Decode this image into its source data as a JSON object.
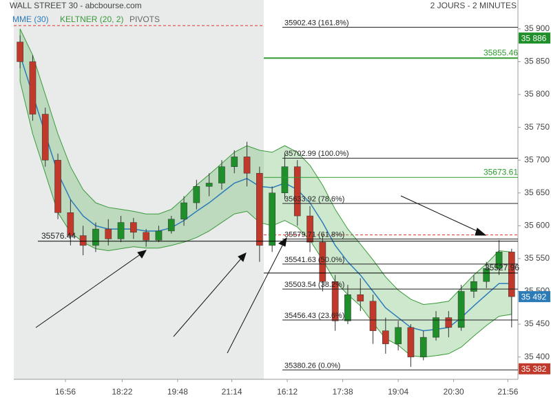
{
  "chart_data": {
    "type": "candlestick",
    "title": "WALL STREET 30 - abcbourse.com",
    "subtitle": "2 JOURS - 2 MINUTES",
    "xlim": [
      -0.5,
      39.5
    ],
    "xticks": [
      {
        "value": 3.6,
        "label": "16:56"
      },
      {
        "value": 8.1,
        "label": "18:22"
      },
      {
        "value": 12.5,
        "label": "19:48"
      },
      {
        "value": 16.8,
        "label": "21:14"
      },
      {
        "value": 21.2,
        "label": "16:12"
      },
      {
        "value": 25.6,
        "label": "17:38"
      },
      {
        "value": 30,
        "label": "19:04"
      },
      {
        "value": 34.4,
        "label": "20:30"
      },
      {
        "value": 38.7,
        "label": "21:56"
      }
    ],
    "ylim": [
      35366,
      35944
    ],
    "yticks": [
      {
        "value": 35400,
        "label": "35 400"
      },
      {
        "value": 35450,
        "label": "35 450"
      },
      {
        "value": 35500,
        "label": "35 500"
      },
      {
        "value": 35550,
        "label": "35 550"
      },
      {
        "value": 35600,
        "label": "35 600"
      },
      {
        "value": 35650,
        "label": "35 650"
      },
      {
        "value": 35700,
        "label": "35 700"
      },
      {
        "value": 35750,
        "label": "35 750"
      },
      {
        "value": 35800,
        "label": "35 800"
      },
      {
        "value": 35850,
        "label": "35 850"
      },
      {
        "value": 35900,
        "label": "35 900"
      }
    ],
    "up_color": "#1f8f2a",
    "down_color": "#c0392b",
    "candles": {
      "open": [
        35880,
        35850,
        35770,
        35700,
        35620,
        35585,
        35570,
        35595,
        35580,
        35605,
        35590,
        35578,
        35592,
        35610,
        35635,
        35660,
        35665,
        35690,
        35705,
        35680,
        35570,
        35650,
        35690,
        35615,
        35575,
        35515,
        35455,
        35495,
        35485,
        35440,
        35420,
        35445,
        35400,
        35430,
        35460,
        35445,
        35500,
        35515,
        35535,
        35560
      ],
      "high": [
        35890,
        35860,
        35780,
        35710,
        35640,
        35600,
        35605,
        35610,
        35615,
        35612,
        35595,
        35600,
        35615,
        35645,
        35670,
        35680,
        35700,
        35715,
        35728,
        35690,
        35660,
        35712,
        35700,
        35630,
        35585,
        35525,
        35510,
        35520,
        35495,
        35460,
        35455,
        35450,
        35440,
        35470,
        35470,
        35510,
        35525,
        35545,
        35578,
        35565
      ],
      "low": [
        35840,
        35760,
        35690,
        35610,
        35570,
        35555,
        35560,
        35570,
        35575,
        35580,
        35568,
        35575,
        35588,
        35600,
        35625,
        35645,
        35655,
        35680,
        35660,
        35545,
        35560,
        35640,
        35600,
        35560,
        35500,
        35440,
        35450,
        35470,
        35420,
        35405,
        35410,
        35385,
        35395,
        35425,
        35430,
        35440,
        35490,
        35505,
        35525,
        35445
      ],
      "close": [
        35850,
        35770,
        35700,
        35620,
        35585,
        35570,
        35595,
        35580,
        35605,
        35590,
        35578,
        35592,
        35610,
        35635,
        35660,
        35665,
        35690,
        35705,
        35680,
        35570,
        35650,
        35690,
        35615,
        35575,
        35515,
        35455,
        35495,
        35485,
        35440,
        35420,
        35445,
        35400,
        35430,
        35460,
        35445,
        35500,
        35515,
        35535,
        35560,
        35492
      ]
    },
    "mme": {
      "name": "MME (30)",
      "color": "#2b7bb9",
      "values": [
        35860,
        35800,
        35740,
        35680,
        35640,
        35615,
        35600,
        35595,
        35595,
        35595,
        35592,
        35592,
        35597,
        35608,
        35622,
        35635,
        35650,
        35665,
        35672,
        35660,
        35658,
        35665,
        35655,
        35635,
        35605,
        35570,
        35545,
        35525,
        35500,
        35475,
        35460,
        35445,
        35440,
        35442,
        35445,
        35460,
        35478,
        35495,
        35512,
        35512
      ]
    },
    "keltner": {
      "name": "KELTNER (20, 2)",
      "color": "#3a9a3a",
      "upper": [
        35900,
        35860,
        35800,
        35740,
        35690,
        35655,
        35635,
        35628,
        35625,
        35622,
        35618,
        35618,
        35625,
        35642,
        35662,
        35678,
        35695,
        35712,
        35722,
        35715,
        35712,
        35722,
        35712,
        35692,
        35662,
        35625,
        35595,
        35572,
        35548,
        35522,
        35502,
        35488,
        35480,
        35482,
        35485,
        35505,
        35525,
        35542,
        35562,
        35560
      ],
      "lower": [
        35820,
        35740,
        35680,
        35620,
        35590,
        35575,
        35565,
        35562,
        35565,
        35568,
        35566,
        35566,
        35570,
        35575,
        35582,
        35592,
        35605,
        35618,
        35622,
        35605,
        35600,
        35608,
        35598,
        35578,
        35548,
        35515,
        35495,
        35478,
        35452,
        35428,
        35418,
        35402,
        35400,
        35402,
        35405,
        35415,
        35432,
        35448,
        35462,
        35465
      ]
    },
    "pivots": {
      "name": "PIVOTS",
      "color": "#e03030",
      "values": [
        35905,
        35586
      ]
    },
    "fib_levels": [
      {
        "value": 35902.43,
        "label": "35902.43 (161.8%)"
      },
      {
        "value": 35702.99,
        "label": "35702.99 (100.0%)"
      },
      {
        "value": 35633.92,
        "label": "35633.92 (78.6%)"
      },
      {
        "value": 35579.71,
        "label": "35579.71 (61.8%)"
      },
      {
        "value": 35541.63,
        "label": "35541.63 (50.0%)"
      },
      {
        "value": 35503.54,
        "label": "35503.54 (38.2%)"
      },
      {
        "value": 35456.43,
        "label": "35456.43 (23.6%)"
      },
      {
        "value": 35380.26,
        "label": "35380.26 (0.0%)"
      }
    ],
    "levels": [
      {
        "value": 35576.44,
        "color": "#000000"
      },
      {
        "value": 35855.46,
        "color": "#2e9a2e"
      },
      {
        "value": 35673.61,
        "color": "#2e9a2e"
      },
      {
        "value": 35527.96,
        "color": "#000000"
      }
    ],
    "price_tags": [
      {
        "value": 35886,
        "label": "35 886",
        "color": "#1f8f2a"
      },
      {
        "value": 35492,
        "label": "35 492",
        "color": "#2b7bb9"
      },
      {
        "value": 35382,
        "label": "35 382",
        "color": "#c0392b"
      }
    ]
  }
}
